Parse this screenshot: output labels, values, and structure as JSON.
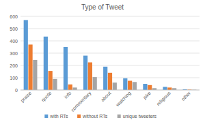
{
  "chart_data": {
    "type": "bar",
    "title": "Type of Tweet",
    "categories": [
      "praise",
      "quote",
      "info",
      "commentary",
      "about",
      "watching",
      "joke",
      "religious",
      "other"
    ],
    "series": [
      {
        "name": "with RTs",
        "color": "#5b9bd5",
        "values": [
          570,
          435,
          350,
          280,
          190,
          95,
          50,
          25,
          5
        ]
      },
      {
        "name": "without RTs",
        "color": "#ed7d31",
        "values": [
          370,
          155,
          45,
          225,
          140,
          75,
          40,
          20,
          3
        ]
      },
      {
        "name": "unique tweeters",
        "color": "#a5a5a5",
        "values": [
          245,
          90,
          20,
          105,
          60,
          65,
          15,
          15,
          2
        ]
      }
    ],
    "ylim": [
      0,
      600
    ],
    "yticks": [
      0,
      100,
      200,
      300,
      400,
      500,
      600
    ],
    "grid": true,
    "legend": "bottom"
  }
}
